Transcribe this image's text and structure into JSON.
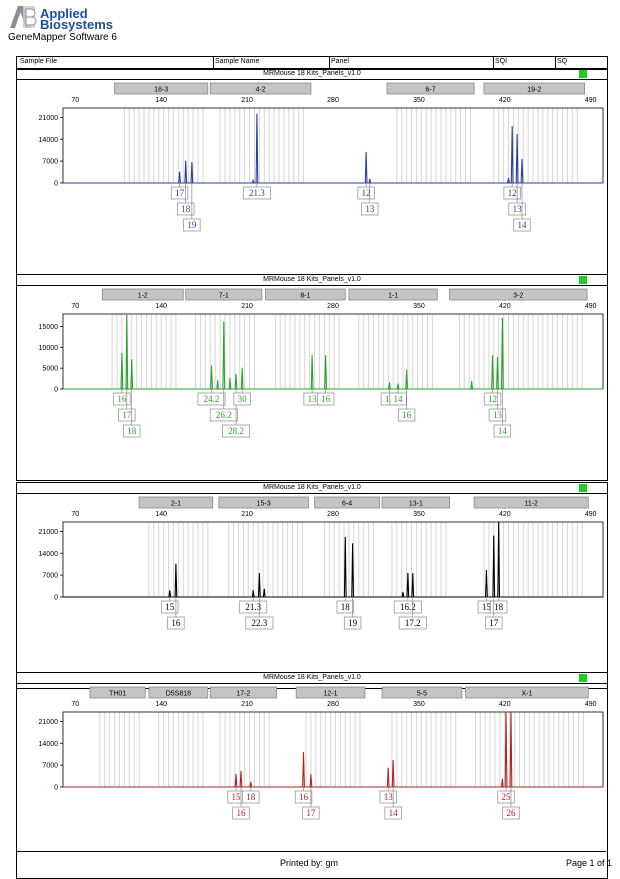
{
  "brand": {
    "line1": "Applied",
    "line2": "Biosystems",
    "logo_text": "AB"
  },
  "software": "GeneMapper Software 6",
  "header": {
    "columns": [
      "Sample File",
      "Sample Name",
      "Panel",
      "SQI",
      "SQ"
    ]
  },
  "footer": {
    "printed": "Printed by: gm",
    "page": "Page 1 of 1"
  },
  "colors": {
    "blue": "#2b3f9e",
    "green": "#2ea02e",
    "black": "#000000",
    "red": "#b32222",
    "status": "#22cc22"
  },
  "chart_data": [
    {
      "type": "line",
      "title": "MRMouse 18 Kits_Panels_v1.0",
      "color": "#2b3f9e",
      "x_ticks": [
        70,
        140,
        210,
        280,
        350,
        420,
        490
      ],
      "y_ticks": [
        0,
        7000,
        14000,
        21000
      ],
      "xlim": [
        60,
        500
      ],
      "ylim": [
        0,
        24000
      ],
      "markers": [
        {
          "label": "18-3",
          "start": 102,
          "end": 178
        },
        {
          "label": "4-2",
          "start": 180,
          "end": 262
        },
        {
          "label": "6-7",
          "start": 324,
          "end": 395
        },
        {
          "label": "19-2",
          "start": 403,
          "end": 485
        }
      ],
      "peaks": [
        {
          "x": 155,
          "h": 3500
        },
        {
          "x": 160,
          "h": 7000
        },
        {
          "x": 165,
          "h": 6500
        },
        {
          "x": 215,
          "h": 800
        },
        {
          "x": 218,
          "h": 22000
        },
        {
          "x": 307,
          "h": 9800
        },
        {
          "x": 310,
          "h": 1200
        },
        {
          "x": 423,
          "h": 1500
        },
        {
          "x": 426,
          "h": 18000
        },
        {
          "x": 430,
          "h": 15500
        },
        {
          "x": 434,
          "h": 7500
        }
      ],
      "alleles": [
        {
          "label": "17",
          "x": 155,
          "row": 0
        },
        {
          "label": "18",
          "x": 160,
          "row": 1
        },
        {
          "label": "19",
          "x": 165,
          "row": 2
        },
        {
          "label": "21.3",
          "x": 218,
          "row": 0
        },
        {
          "label": "12",
          "x": 307,
          "row": 0
        },
        {
          "label": "13",
          "x": 310,
          "row": 1
        },
        {
          "label": "12",
          "x": 426,
          "row": 0
        },
        {
          "label": "13",
          "x": 430,
          "row": 1
        },
        {
          "label": "14",
          "x": 434,
          "row": 2
        }
      ]
    },
    {
      "type": "line",
      "title": "MRMouse 18 Kits_Panels_v1.0",
      "color": "#2ea02e",
      "x_ticks": [
        70,
        140,
        210,
        280,
        350,
        420,
        490
      ],
      "y_ticks": [
        0,
        5000,
        10000,
        15000
      ],
      "xlim": [
        60,
        500
      ],
      "ylim": [
        0,
        18000
      ],
      "markers": [
        {
          "label": "1-2",
          "start": 92,
          "end": 158
        },
        {
          "label": "7-1",
          "start": 160,
          "end": 222
        },
        {
          "label": "8-1",
          "start": 225,
          "end": 290
        },
        {
          "label": "1-1",
          "start": 293,
          "end": 365
        },
        {
          "label": "3-2",
          "start": 375,
          "end": 487
        }
      ],
      "peaks": [
        {
          "x": 108,
          "h": 8500
        },
        {
          "x": 112,
          "h": 18000
        },
        {
          "x": 116,
          "h": 7000
        },
        {
          "x": 181,
          "h": 5500
        },
        {
          "x": 186,
          "h": 2000
        },
        {
          "x": 191,
          "h": 16000
        },
        {
          "x": 196,
          "h": 2500
        },
        {
          "x": 201,
          "h": 3500
        },
        {
          "x": 206,
          "h": 5000
        },
        {
          "x": 263,
          "h": 8000
        },
        {
          "x": 274,
          "h": 8000
        },
        {
          "x": 326,
          "h": 1500
        },
        {
          "x": 333,
          "h": 1200
        },
        {
          "x": 340,
          "h": 4500
        },
        {
          "x": 393,
          "h": 1800
        },
        {
          "x": 410,
          "h": 8000
        },
        {
          "x": 414,
          "h": 7500
        },
        {
          "x": 418,
          "h": 17000
        }
      ],
      "alleles": [
        {
          "label": "16",
          "x": 108,
          "row": 0
        },
        {
          "label": "17",
          "x": 112,
          "row": 1
        },
        {
          "label": "18",
          "x": 116,
          "row": 2
        },
        {
          "label": "24.2",
          "x": 181,
          "row": 0
        },
        {
          "label": "26.2",
          "x": 191,
          "row": 1
        },
        {
          "label": "28.2",
          "x": 201,
          "row": 2
        },
        {
          "label": "30",
          "x": 206,
          "row": 0
        },
        {
          "label": "13",
          "x": 263,
          "row": 0
        },
        {
          "label": "16",
          "x": 274,
          "row": 0
        },
        {
          "label": "11",
          "x": 326,
          "row": 0
        },
        {
          "label": "14",
          "x": 333,
          "row": 0
        },
        {
          "label": "16",
          "x": 340,
          "row": 1
        },
        {
          "label": "12",
          "x": 410,
          "row": 0
        },
        {
          "label": "13",
          "x": 414,
          "row": 1
        },
        {
          "label": "14",
          "x": 418,
          "row": 2
        }
      ]
    },
    {
      "type": "line",
      "title": "MRMouse 18 Kits_Panels_v1.0",
      "color": "#000000",
      "x_ticks": [
        70,
        140,
        210,
        280,
        350,
        420,
        490
      ],
      "y_ticks": [
        0,
        7000,
        14000,
        21000
      ],
      "xlim": [
        60,
        500
      ],
      "ylim": [
        0,
        24000
      ],
      "markers": [
        {
          "label": "2-1",
          "start": 122,
          "end": 182
        },
        {
          "label": "15-3",
          "start": 187,
          "end": 260
        },
        {
          "label": "6-4",
          "start": 265,
          "end": 318
        },
        {
          "label": "13-1",
          "start": 320,
          "end": 375
        },
        {
          "label": "11-2",
          "start": 395,
          "end": 488
        }
      ],
      "peaks": [
        {
          "x": 147,
          "h": 2000
        },
        {
          "x": 152,
          "h": 10500
        },
        {
          "x": 215,
          "h": 2000
        },
        {
          "x": 220,
          "h": 7500
        },
        {
          "x": 224,
          "h": 2500
        },
        {
          "x": 290,
          "h": 19000
        },
        {
          "x": 296,
          "h": 17000
        },
        {
          "x": 337,
          "h": 1500
        },
        {
          "x": 341,
          "h": 7500
        },
        {
          "x": 345,
          "h": 7500
        },
        {
          "x": 405,
          "h": 8500
        },
        {
          "x": 411,
          "h": 19500
        },
        {
          "x": 415,
          "h": 24000
        }
      ],
      "alleles": [
        {
          "label": "15",
          "x": 147,
          "row": 0
        },
        {
          "label": "16",
          "x": 152,
          "row": 1
        },
        {
          "label": "21.3",
          "x": 215,
          "row": 0
        },
        {
          "label": "22.3",
          "x": 220,
          "row": 1
        },
        {
          "label": "18",
          "x": 290,
          "row": 0
        },
        {
          "label": "19",
          "x": 296,
          "row": 1
        },
        {
          "label": "16.2",
          "x": 341,
          "row": 0
        },
        {
          "label": "17.2",
          "x": 345,
          "row": 1
        },
        {
          "label": "15",
          "x": 405,
          "row": 0
        },
        {
          "label": "18",
          "x": 415,
          "row": 0
        },
        {
          "label": "17",
          "x": 411,
          "row": 1
        }
      ]
    },
    {
      "type": "line",
      "title": "MRMouse 18 Kits_Panels_v1.0",
      "color": "#b32222",
      "x_ticks": [
        70,
        140,
        210,
        280,
        350,
        420,
        490
      ],
      "y_ticks": [
        0,
        7000,
        14000,
        21000
      ],
      "xlim": [
        60,
        500
      ],
      "ylim": [
        0,
        24000
      ],
      "markers": [
        {
          "label": "TH01",
          "start": 82,
          "end": 127
        },
        {
          "label": "D5S818",
          "start": 130,
          "end": 178
        },
        {
          "label": "17-2",
          "start": 180,
          "end": 234
        },
        {
          "label": "12-1",
          "start": 250,
          "end": 306
        },
        {
          "label": "5-5",
          "start": 320,
          "end": 385
        },
        {
          "label": "X-1",
          "start": 388,
          "end": 488
        }
      ],
      "peaks": [
        {
          "x": 201,
          "h": 4000
        },
        {
          "x": 205,
          "h": 5000
        },
        {
          "x": 213,
          "h": 1500
        },
        {
          "x": 256,
          "h": 11000
        },
        {
          "x": 262,
          "h": 4000
        },
        {
          "x": 325,
          "h": 6000
        },
        {
          "x": 329,
          "h": 8500
        },
        {
          "x": 418,
          "h": 2500
        },
        {
          "x": 421,
          "h": 24000
        },
        {
          "x": 425,
          "h": 24000
        }
      ],
      "alleles": [
        {
          "label": "15",
          "x": 201,
          "row": 0
        },
        {
          "label": "18",
          "x": 213,
          "row": 0
        },
        {
          "label": "16",
          "x": 205,
          "row": 1
        },
        {
          "label": "16",
          "x": 256,
          "row": 0
        },
        {
          "label": "17",
          "x": 262,
          "row": 1
        },
        {
          "label": "13",
          "x": 325,
          "row": 0
        },
        {
          "label": "14",
          "x": 329,
          "row": 1
        },
        {
          "label": "25",
          "x": 421,
          "row": 0
        },
        {
          "label": "26",
          "x": 425,
          "row": 1
        }
      ]
    }
  ]
}
